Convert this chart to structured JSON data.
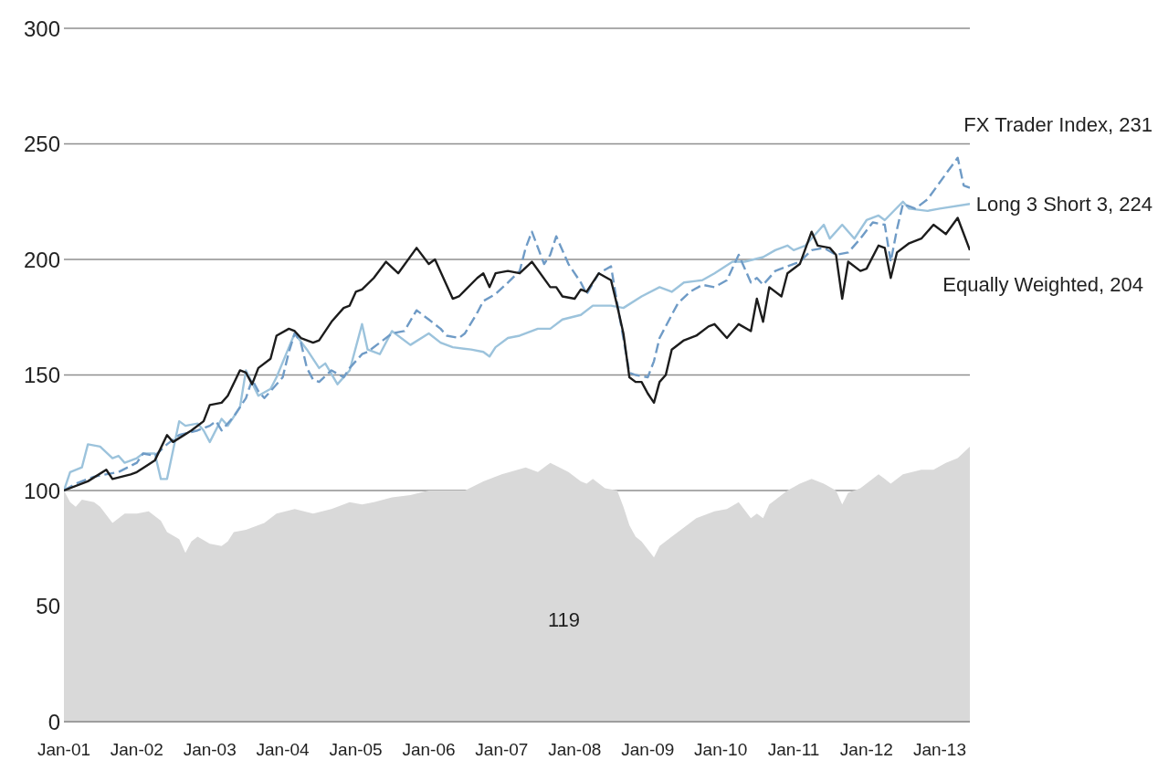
{
  "chart_data": {
    "type": "line",
    "xlim": [
      "2001-01",
      "2013-06"
    ],
    "xticks": [
      {
        "value": "2001-01",
        "label": "Jan-01"
      },
      {
        "value": "2002-01",
        "label": "Jan-02"
      },
      {
        "value": "2003-01",
        "label": "Jan-03"
      },
      {
        "value": "2004-01",
        "label": "Jan-04"
      },
      {
        "value": "2005-01",
        "label": "Jan-05"
      },
      {
        "value": "2006-01",
        "label": "Jan-06"
      },
      {
        "value": "2007-01",
        "label": "Jan-07"
      },
      {
        "value": "2008-01",
        "label": "Jan-08"
      },
      {
        "value": "2009-01",
        "label": "Jan-09"
      },
      {
        "value": "2010-01",
        "label": "Jan-10"
      },
      {
        "value": "2011-01",
        "label": "Jan-11"
      },
      {
        "value": "2012-01",
        "label": "Jan-12"
      },
      {
        "value": "2013-01",
        "label": "Jan-13"
      }
    ],
    "ylim": [
      0,
      300
    ],
    "yticks": [
      0,
      50,
      100,
      150,
      200,
      250,
      300
    ],
    "grid": "y",
    "series": [
      {
        "type": "area",
        "color": "#d9d9d9",
        "x": [
          "2001-01",
          "2001-02",
          "2001-03",
          "2001-04",
          "2001-06",
          "2001-07",
          "2001-09",
          "2001-11",
          "2002-01",
          "2002-03",
          "2002-05",
          "2002-06",
          "2002-08",
          "2002-09",
          "2002-10",
          "2002-11",
          "2003-01",
          "2003-03",
          "2003-04",
          "2003-05",
          "2003-07",
          "2003-10",
          "2003-12",
          "2004-03",
          "2004-06",
          "2004-09",
          "2004-12",
          "2005-02",
          "2005-04",
          "2005-07",
          "2005-10",
          "2006-01",
          "2006-04",
          "2006-07",
          "2006-10",
          "2007-01",
          "2007-05",
          "2007-07",
          "2007-09",
          "2007-12",
          "2008-02",
          "2008-03",
          "2008-04",
          "2008-06",
          "2008-08",
          "2008-09",
          "2008-10",
          "2008-11",
          "2008-12",
          "2009-02",
          "2009-03",
          "2009-05",
          "2009-07",
          "2009-09",
          "2009-12",
          "2010-02",
          "2010-04",
          "2010-06",
          "2010-07",
          "2010-08",
          "2010-09",
          "2010-12",
          "2011-02",
          "2011-04",
          "2011-06",
          "2011-08",
          "2011-09",
          "2011-10",
          "2011-12",
          "2012-03",
          "2012-04",
          "2012-05",
          "2012-07",
          "2012-10",
          "2012-12",
          "2013-02",
          "2013-04",
          "2013-06"
        ],
        "values": [
          100,
          95,
          93,
          96,
          95,
          93,
          86,
          90,
          90,
          91,
          87,
          82,
          79,
          73,
          78,
          80,
          77,
          76,
          78,
          82,
          83,
          86,
          90,
          92,
          90,
          92,
          95,
          94,
          95,
          97,
          98,
          100,
          100,
          100,
          104,
          107,
          110,
          108,
          112,
          108,
          104,
          103,
          105,
          101,
          100,
          93,
          85,
          80,
          78,
          71,
          76,
          80,
          84,
          88,
          91,
          92,
          95,
          88,
          90,
          88,
          94,
          100,
          103,
          105,
          103,
          100,
          94,
          99,
          101,
          107,
          105,
          103,
          107,
          109,
          109,
          112,
          114,
          119
        ]
      },
      {
        "color": "#9cc3dc",
        "x": [
          "2001-01",
          "2001-02",
          "2001-04",
          "2001-05",
          "2001-07",
          "2001-09",
          "2001-10",
          "2001-11",
          "2002-01",
          "2002-02",
          "2002-04",
          "2002-05",
          "2002-06",
          "2002-08",
          "2002-09",
          "2002-11",
          "2002-12",
          "2003-01",
          "2003-03",
          "2003-04",
          "2003-06",
          "2003-07",
          "2003-09",
          "2003-11",
          "2003-12",
          "2004-02",
          "2004-03",
          "2004-05",
          "2004-07",
          "2004-08",
          "2004-10",
          "2004-12",
          "2005-02",
          "2005-03",
          "2005-05",
          "2005-07",
          "2005-10",
          "2006-01",
          "2006-03",
          "2006-05",
          "2006-08",
          "2006-10",
          "2006-11",
          "2006-12",
          "2007-02",
          "2007-04",
          "2007-07",
          "2007-09",
          "2007-11",
          "2008-02",
          "2008-04",
          "2008-07",
          "2008-09",
          "2008-12",
          "2009-03",
          "2009-05",
          "2009-07",
          "2009-10",
          "2009-12",
          "2010-03",
          "2010-05",
          "2010-08",
          "2010-10",
          "2010-12",
          "2011-01",
          "2011-03",
          "2011-06",
          "2011-07",
          "2011-09",
          "2011-11",
          "2012-01",
          "2012-03",
          "2012-04",
          "2012-07",
          "2012-08",
          "2012-11",
          "2013-01",
          "2013-06"
        ],
        "values": [
          100,
          108,
          110,
          120,
          119,
          114,
          115,
          112,
          114,
          116,
          116,
          105,
          105,
          130,
          128,
          129,
          126,
          121,
          131,
          128,
          136,
          152,
          141,
          144,
          149,
          162,
          168,
          161,
          153,
          155,
          146,
          152,
          172,
          161,
          159,
          169,
          163,
          168,
          164,
          162,
          161,
          160,
          158,
          162,
          166,
          167,
          170,
          170,
          174,
          176,
          180,
          180,
          179,
          184,
          188,
          186,
          190,
          191,
          194,
          199,
          199,
          201,
          204,
          206,
          204,
          206,
          215,
          209,
          215,
          209,
          217,
          219,
          217,
          225,
          222,
          221,
          222,
          224
        ]
      },
      {
        "color": "#6f9bc6",
        "line_style": "dashed",
        "x": [
          "2001-01",
          "2001-03",
          "2001-06",
          "2001-10",
          "2002-01",
          "2002-02",
          "2002-04",
          "2002-06",
          "2002-08",
          "2002-11",
          "2003-01",
          "2003-02",
          "2003-03",
          "2003-05",
          "2003-07",
          "2003-08",
          "2003-09",
          "2003-10",
          "2003-11",
          "2004-01",
          "2004-02",
          "2004-03",
          "2004-04",
          "2004-05",
          "2004-06",
          "2004-07",
          "2004-09",
          "2004-11",
          "2004-12",
          "2005-02",
          "2005-03",
          "2005-05",
          "2005-07",
          "2005-09",
          "2005-11",
          "2006-01",
          "2006-03",
          "2006-04",
          "2006-06",
          "2006-07",
          "2006-09",
          "2006-10",
          "2006-12",
          "2007-02",
          "2007-04",
          "2007-05",
          "2007-06",
          "2007-08",
          "2007-09",
          "2007-10",
          "2007-12",
          "2008-02",
          "2008-03",
          "2008-05",
          "2008-07",
          "2008-08",
          "2008-10",
          "2008-11",
          "2009-01",
          "2009-02",
          "2009-03",
          "2009-05",
          "2009-06",
          "2009-08",
          "2009-10",
          "2009-12",
          "2010-02",
          "2010-04",
          "2010-06",
          "2010-07",
          "2010-08",
          "2010-10",
          "2010-12",
          "2011-02",
          "2011-04",
          "2011-06",
          "2011-08",
          "2011-10",
          "2011-12",
          "2012-02",
          "2012-04",
          "2012-05",
          "2012-06",
          "2012-07",
          "2012-09",
          "2012-11",
          "2013-02",
          "2013-04",
          "2013-05",
          "2013-06"
        ],
        "values": [
          100,
          103,
          106,
          108,
          112,
          116,
          115,
          120,
          124,
          126,
          128,
          130,
          126,
          132,
          140,
          148,
          143,
          140,
          143,
          149,
          160,
          168,
          164,
          153,
          148,
          147,
          152,
          149,
          153,
          159,
          160,
          164,
          168,
          169,
          178,
          174,
          170,
          167,
          166,
          168,
          177,
          182,
          185,
          190,
          195,
          205,
          212,
          198,
          202,
          210,
          198,
          190,
          185,
          194,
          197,
          181,
          151,
          150,
          149,
          156,
          166,
          176,
          181,
          186,
          189,
          188,
          191,
          202,
          190,
          192,
          189,
          195,
          197,
          199,
          204,
          205,
          202,
          203,
          209,
          216,
          215,
          199,
          213,
          224,
          222,
          226,
          237,
          244,
          232,
          231
        ]
      },
      {
        "color": "#1c1c1c",
        "x": [
          "2001-01",
          "2001-05",
          "2001-08",
          "2001-09",
          "2001-12",
          "2002-01",
          "2002-04",
          "2002-06",
          "2002-07",
          "2002-10",
          "2002-12",
          "2003-01",
          "2003-03",
          "2003-04",
          "2003-06",
          "2003-07",
          "2003-08",
          "2003-09",
          "2003-11",
          "2003-12",
          "2004-02",
          "2004-03",
          "2004-04",
          "2004-06",
          "2004-07",
          "2004-09",
          "2004-11",
          "2004-12",
          "2005-01",
          "2005-02",
          "2005-04",
          "2005-06",
          "2005-08",
          "2005-11",
          "2006-01",
          "2006-02",
          "2006-05",
          "2006-06",
          "2006-09",
          "2006-10",
          "2006-11",
          "2006-12",
          "2007-02",
          "2007-04",
          "2007-06",
          "2007-09",
          "2007-10",
          "2007-11",
          "2008-01",
          "2008-02",
          "2008-03",
          "2008-05",
          "2008-07",
          "2008-08",
          "2008-09",
          "2008-10",
          "2008-11",
          "2008-12",
          "2009-01",
          "2009-02",
          "2009-03",
          "2009-04",
          "2009-05",
          "2009-07",
          "2009-09",
          "2009-11",
          "2009-12",
          "2010-02",
          "2010-04",
          "2010-06",
          "2010-07",
          "2010-08",
          "2010-09",
          "2010-11",
          "2010-12",
          "2011-02",
          "2011-04",
          "2011-05",
          "2011-07",
          "2011-08",
          "2011-09",
          "2011-10",
          "2011-12",
          "2012-01",
          "2012-03",
          "2012-04",
          "2012-05",
          "2012-06",
          "2012-08",
          "2012-10",
          "2012-12",
          "2013-02",
          "2013-04",
          "2013-06"
        ],
        "values": [
          100,
          104,
          109,
          105,
          107,
          108,
          113,
          124,
          121,
          126,
          130,
          137,
          138,
          141,
          152,
          151,
          146,
          153,
          157,
          167,
          170,
          169,
          166,
          164,
          165,
          173,
          179,
          180,
          186,
          187,
          192,
          199,
          194,
          205,
          198,
          200,
          183,
          184,
          192,
          194,
          188,
          194,
          195,
          194,
          199,
          188,
          188,
          184,
          183,
          187,
          186,
          194,
          191,
          180,
          168,
          149,
          147,
          147,
          142,
          138,
          147,
          150,
          161,
          165,
          167,
          171,
          172,
          166,
          172,
          169,
          183,
          173,
          188,
          184,
          194,
          198,
          212,
          206,
          205,
          202,
          183,
          199,
          195,
          196,
          206,
          205,
          192,
          203,
          207,
          209,
          215,
          211,
          218,
          204
        ]
      }
    ],
    "annotations": [
      "FX Trader Index, 231",
      "Long 3 Short 3, 224",
      "Equally Weighted, 204",
      "119"
    ]
  }
}
